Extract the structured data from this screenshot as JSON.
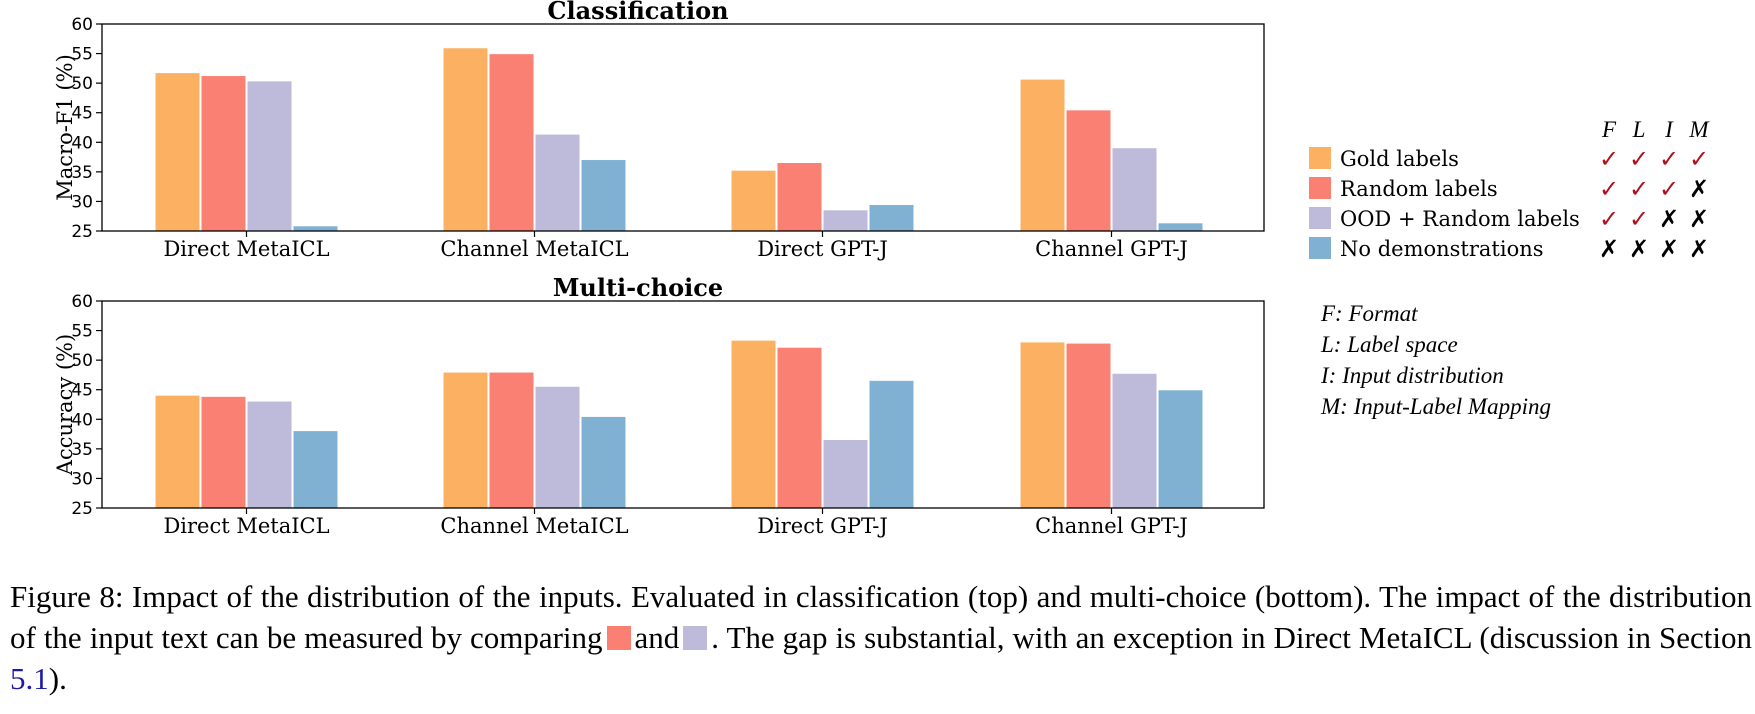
{
  "chart_data": [
    {
      "type": "bar",
      "title": "Classification",
      "ylabel": "Macro-F1 (%)",
      "xlabel": "",
      "ylim": [
        25,
        60
      ],
      "yticks": [
        25,
        30,
        35,
        40,
        45,
        50,
        55,
        60
      ],
      "categories": [
        "Direct MetaICL",
        "Channel MetaICL",
        "Direct GPT-J",
        "Channel GPT-J"
      ],
      "series": [
        {
          "name": "Gold labels",
          "values": [
            51.7,
            55.9,
            35.2,
            50.6
          ]
        },
        {
          "name": "Random labels",
          "values": [
            51.2,
            54.9,
            36.5,
            45.4
          ]
        },
        {
          "name": "OOD + Random labels",
          "values": [
            50.3,
            41.3,
            28.5,
            39.0
          ]
        },
        {
          "name": "No demonstrations",
          "values": [
            25.8,
            37.0,
            29.4,
            26.3
          ]
        }
      ],
      "grid": false
    },
    {
      "type": "bar",
      "title": "Multi-choice",
      "ylabel": "Accuracy (%)",
      "xlabel": "",
      "ylim": [
        25,
        60
      ],
      "yticks": [
        25,
        30,
        35,
        40,
        45,
        50,
        55,
        60
      ],
      "categories": [
        "Direct MetaICL",
        "Channel MetaICL",
        "Direct GPT-J",
        "Channel GPT-J"
      ],
      "series": [
        {
          "name": "Gold labels",
          "values": [
            44.0,
            47.9,
            53.3,
            53.0
          ]
        },
        {
          "name": "Random labels",
          "values": [
            43.8,
            47.9,
            52.1,
            52.8
          ]
        },
        {
          "name": "OOD + Random labels",
          "values": [
            43.0,
            45.5,
            36.5,
            47.7
          ]
        },
        {
          "name": "No demonstrations",
          "values": [
            38.0,
            40.4,
            46.5,
            44.9
          ]
        }
      ],
      "grid": false
    }
  ],
  "colors": {
    "gold": "#fbb161",
    "random": "#fa8073",
    "ood": "#bebada",
    "nodemo": "#80b1d3",
    "check": "#b0101a"
  },
  "legend": {
    "placement": "right",
    "header": [
      "F",
      "L",
      "I",
      "M"
    ],
    "items": [
      {
        "label": "Gold labels",
        "marks": [
          "✓",
          "✓",
          "✓",
          "✓"
        ]
      },
      {
        "label": "Random labels",
        "marks": [
          "✓",
          "✓",
          "✓",
          "✗"
        ]
      },
      {
        "label": "OOD + Random labels",
        "marks": [
          "✓",
          "✓",
          "✗",
          "✗"
        ]
      },
      {
        "label": "No demonstrations",
        "marks": [
          "✗",
          "✗",
          "✗",
          "✗"
        ]
      }
    ]
  },
  "key": [
    "F: Format",
    "L: Label space",
    "I: Input distribution",
    "M: Input-Label Mapping"
  ],
  "caption": {
    "part1": "Figure 8: Impact of the distribution of the inputs. Evaluated in classification (top) and multi-choice (bottom). The impact of the distribution of the input text can be measured by comparing",
    "part2": "and",
    "part3": ". The gap is substantial, with an exception in Direct MetaICL (discussion in Section",
    "ref": "5.1",
    "part4": ")."
  }
}
